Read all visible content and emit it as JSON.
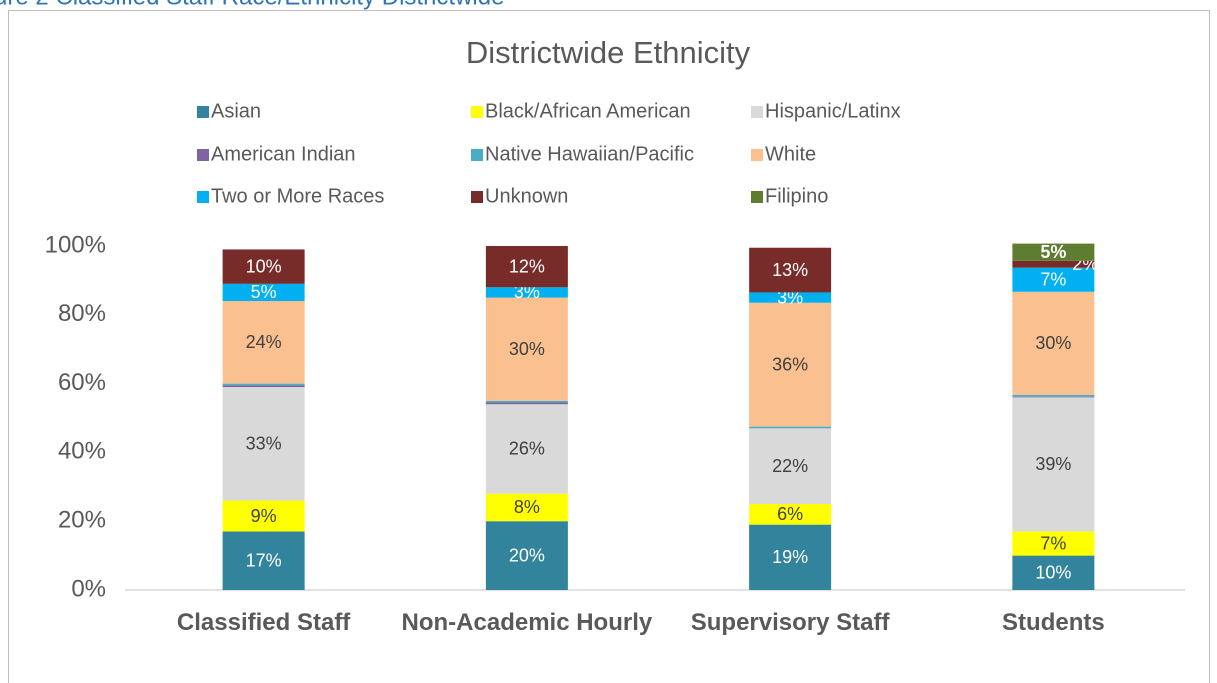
{
  "caption": "ure 2 Classified Staff Race/Ethnicity Districtwide",
  "chart_data": {
    "type": "stacked_bar",
    "title": "Districtwide Ethnicity",
    "categories": [
      "Classified Staff",
      "Non-Academic Hourly",
      "Supervisory Staff",
      "Students"
    ],
    "ylim": [
      0,
      100
    ],
    "yticks": [
      {
        "value": 0,
        "label": "0%"
      },
      {
        "value": 20,
        "label": "20%"
      },
      {
        "value": 40,
        "label": "40%"
      },
      {
        "value": 60,
        "label": "60%"
      },
      {
        "value": 80,
        "label": "80%"
      },
      {
        "value": 100,
        "label": "100%"
      }
    ],
    "grid": false,
    "legend": "top",
    "series": [
      {
        "name": "Asian",
        "color": "#31849b",
        "values": [
          17,
          20,
          19,
          10
        ],
        "value_labels": [
          "17%",
          "20%",
          "19%",
          "10%"
        ]
      },
      {
        "name": "Black/African American",
        "color": "#ffff00",
        "values": [
          9,
          8,
          6,
          7
        ],
        "value_labels": [
          "9%",
          "8%",
          "6%",
          "7%"
        ]
      },
      {
        "name": "Hispanic/Latinx",
        "color": "#d9d9d9",
        "values": [
          33,
          26,
          22,
          39
        ],
        "value_labels": [
          "33%",
          "26%",
          "22%",
          "39%"
        ]
      },
      {
        "name": "American Indian",
        "color": "#8064a2",
        "values": [
          0.5,
          0.5,
          0,
          0.2
        ]
      },
      {
        "name": "Native Hawaiian/Pacific",
        "color": "#4bacc6",
        "values": [
          0.5,
          0.5,
          0.5,
          0.5
        ]
      },
      {
        "name": "White",
        "color": "#fac090",
        "values": [
          24,
          30,
          36,
          30
        ],
        "value_labels": [
          "24%",
          "30%",
          "36%",
          "30%"
        ]
      },
      {
        "name": "Two or More Races",
        "color": "#00b0f0",
        "values": [
          5,
          3,
          3,
          7
        ],
        "value_labels": [
          "5%",
          "3%",
          "3%",
          "7%"
        ]
      },
      {
        "name": "Unknown",
        "color": "#772c2a",
        "values": [
          10,
          12,
          13,
          2
        ],
        "value_labels": [
          "10%",
          "12%",
          "13%",
          "2%"
        ]
      },
      {
        "name": "Filipino",
        "color": "#5e7d30",
        "values": [
          0,
          0,
          0,
          5
        ],
        "value_labels": [
          null,
          null,
          null,
          "5%"
        ]
      }
    ]
  }
}
